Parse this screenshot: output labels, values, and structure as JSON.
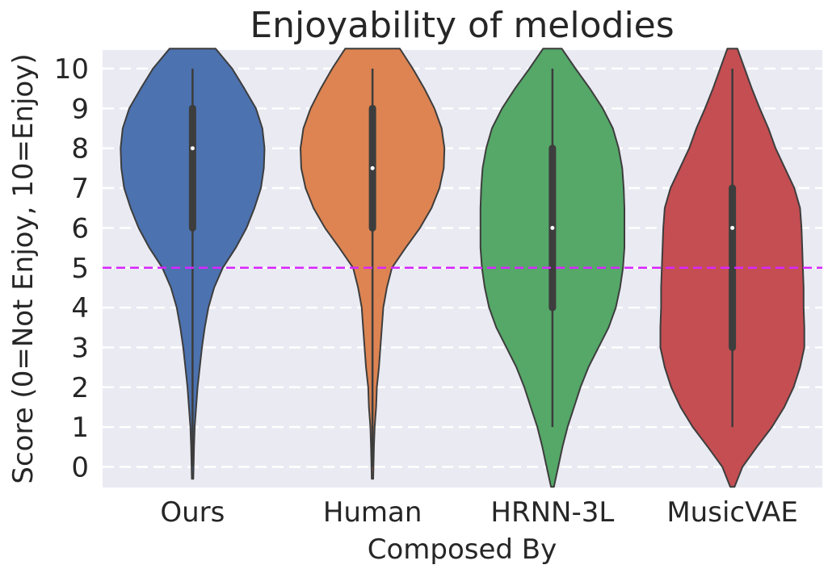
{
  "chart_data": {
    "type": "violin",
    "title": "Enjoyability of melodies",
    "xlabel": "Composed By",
    "ylabel": "Score (0=Not Enjoy, 10=Enjoy)",
    "ylim": [
      -0.5,
      10.5
    ],
    "yticks": [
      0,
      1,
      2,
      3,
      4,
      5,
      6,
      7,
      8,
      9,
      10
    ],
    "grid": true,
    "reference_line": {
      "y": 5,
      "color": "#d926ff",
      "style": "dashed"
    },
    "categories": [
      "Ours",
      "Human",
      "HRNN-3L",
      "MusicVAE"
    ],
    "colors": [
      "#4c72b0",
      "#dd8452",
      "#55a868",
      "#c44e52"
    ],
    "series": [
      {
        "category": "Ours",
        "median": 8,
        "q1": 6,
        "q3": 9,
        "whisker_low": 0,
        "whisker_high": 10,
        "density_y": [
          -0.3,
          0.5,
          1.0,
          1.5,
          2.0,
          2.5,
          3.0,
          3.5,
          4.0,
          4.5,
          5.0,
          5.5,
          6.0,
          6.5,
          7.0,
          7.5,
          8.0,
          8.5,
          9.0,
          9.5,
          10.0,
          10.5
        ],
        "density_width": [
          0.01,
          0.02,
          0.03,
          0.05,
          0.07,
          0.1,
          0.13,
          0.17,
          0.22,
          0.3,
          0.42,
          0.6,
          0.75,
          0.86,
          0.95,
          0.99,
          1.0,
          0.97,
          0.88,
          0.72,
          0.55,
          0.32
        ]
      },
      {
        "category": "Human",
        "median": 7.5,
        "q1": 6,
        "q3": 9,
        "whisker_low": 0,
        "whisker_high": 10,
        "density_y": [
          -0.3,
          0.5,
          1.0,
          1.5,
          2.0,
          2.5,
          3.0,
          3.5,
          4.0,
          4.5,
          5.0,
          5.5,
          6.0,
          6.5,
          7.0,
          7.5,
          8.0,
          8.5,
          9.0,
          9.5,
          10.0,
          10.5
        ],
        "density_width": [
          0.01,
          0.02,
          0.03,
          0.05,
          0.06,
          0.09,
          0.11,
          0.13,
          0.15,
          0.2,
          0.27,
          0.46,
          0.66,
          0.82,
          0.93,
          0.99,
          1.0,
          0.96,
          0.86,
          0.72,
          0.56,
          0.38
        ]
      },
      {
        "category": "HRNN-3L",
        "median": 6,
        "q1": 4,
        "q3": 8,
        "whisker_low": 1,
        "whisker_high": 10,
        "density_y": [
          -0.5,
          0.0,
          0.5,
          1.0,
          1.5,
          2.0,
          2.5,
          3.0,
          3.5,
          4.0,
          4.5,
          5.0,
          5.5,
          6.0,
          6.5,
          7.0,
          7.5,
          8.0,
          8.5,
          9.0,
          9.5,
          10.0,
          10.5
        ],
        "density_width": [
          0.02,
          0.08,
          0.14,
          0.21,
          0.3,
          0.39,
          0.5,
          0.64,
          0.78,
          0.88,
          0.94,
          0.98,
          1.0,
          1.0,
          1.0,
          0.99,
          0.97,
          0.92,
          0.84,
          0.7,
          0.52,
          0.32,
          0.13
        ]
      },
      {
        "category": "MusicVAE",
        "median": 6,
        "q1": 3,
        "q3": 7,
        "whisker_low": 1,
        "whisker_high": 10,
        "density_y": [
          -0.5,
          0.0,
          0.5,
          1.0,
          1.5,
          2.0,
          2.5,
          3.0,
          3.5,
          4.0,
          4.5,
          5.0,
          5.5,
          6.0,
          6.5,
          7.0,
          7.5,
          8.0,
          8.5,
          9.0,
          9.5,
          10.0,
          10.5
        ],
        "density_width": [
          0.03,
          0.14,
          0.34,
          0.55,
          0.72,
          0.85,
          0.94,
          1.0,
          1.0,
          0.99,
          0.99,
          0.98,
          0.97,
          0.96,
          0.94,
          0.86,
          0.73,
          0.6,
          0.5,
          0.38,
          0.27,
          0.17,
          0.07
        ]
      }
    ]
  }
}
